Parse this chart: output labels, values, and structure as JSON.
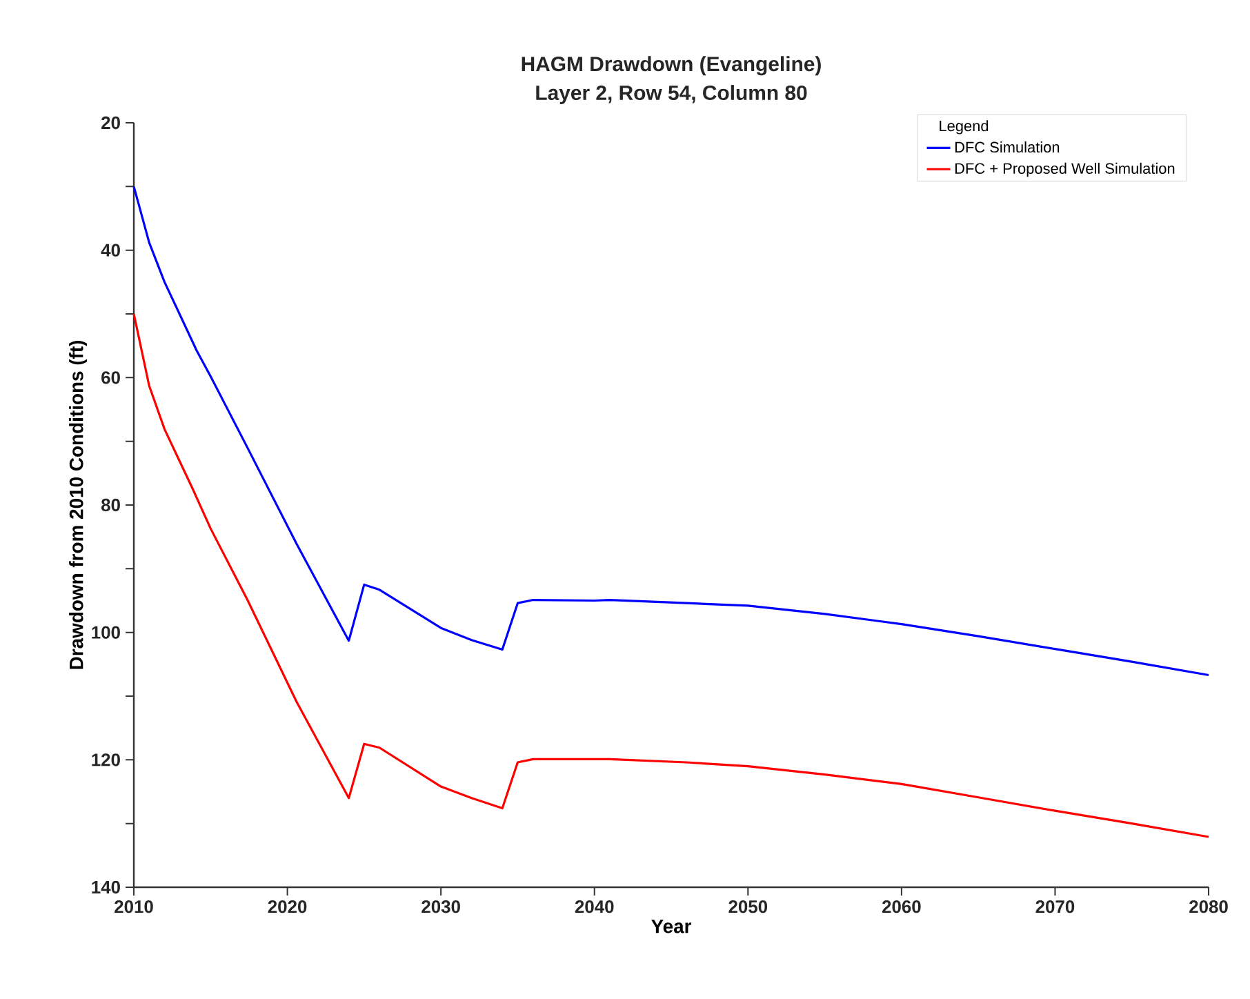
{
  "chart_data": {
    "type": "line",
    "title": "HAGM Drawdown (Evangeline)",
    "subtitle": "Layer 2, Row 54, Column 80",
    "xlabel": "Year",
    "ylabel": "Drawdown from 2010 Conditions (ft)",
    "legend_title": "Legend",
    "legend": "top right",
    "grid": false,
    "marker": "none",
    "line_style": "solid",
    "xlim": [
      2010,
      2080
    ],
    "xticks": [
      2010,
      2020,
      2030,
      2040,
      2050,
      2060,
      2070,
      2080
    ],
    "ylim": [
      140,
      20
    ],
    "yticks": [
      20,
      {
        "value": 30,
        "label": null
      },
      40,
      {
        "value": 50,
        "label": null
      },
      60,
      {
        "value": 70,
        "label": null
      },
      80,
      {
        "value": 90,
        "label": null
      },
      100,
      {
        "value": 110,
        "label": null
      },
      120,
      {
        "value": 130,
        "label": null
      },
      140
    ],
    "series": [
      {
        "name": "DFC Simulation",
        "color": "#0000ff",
        "x": [
          2010,
          2011,
          2012,
          2014.1,
          2015,
          2017.4,
          2020.6,
          2024,
          2025,
          2026,
          2030,
          2032,
          2034,
          2035,
          2036,
          2040,
          2041,
          2046,
          2050,
          2055,
          2060,
          2065,
          2070,
          2075,
          2080
        ],
        "values": [
          30,
          38.8,
          45,
          55.8,
          59.8,
          71,
          86.1,
          101.3,
          92.5,
          93.3,
          99.3,
          101.2,
          102.7,
          95.4,
          94.9,
          95,
          94.9,
          95.4,
          95.8,
          97.1,
          98.7,
          100.6,
          102.6,
          104.6,
          106.7
        ]
      },
      {
        "name": "DFC + Proposed Well Simulation",
        "color": "#ff0000",
        "x": [
          2010,
          2011,
          2012,
          2013.8,
          2015,
          2017.4,
          2020.6,
          2024,
          2025,
          2026,
          2030,
          2032,
          2034,
          2035,
          2036,
          2040,
          2041,
          2046,
          2050,
          2055,
          2060,
          2065,
          2070,
          2075,
          2080
        ],
        "values": [
          50,
          61.3,
          68.1,
          77.3,
          83.7,
          94.9,
          110.9,
          126,
          117.5,
          118.1,
          124.2,
          126,
          127.6,
          120.4,
          119.9,
          119.9,
          119.9,
          120.4,
          121,
          122.3,
          123.8,
          125.9,
          128,
          130,
          132.1
        ]
      }
    ]
  }
}
